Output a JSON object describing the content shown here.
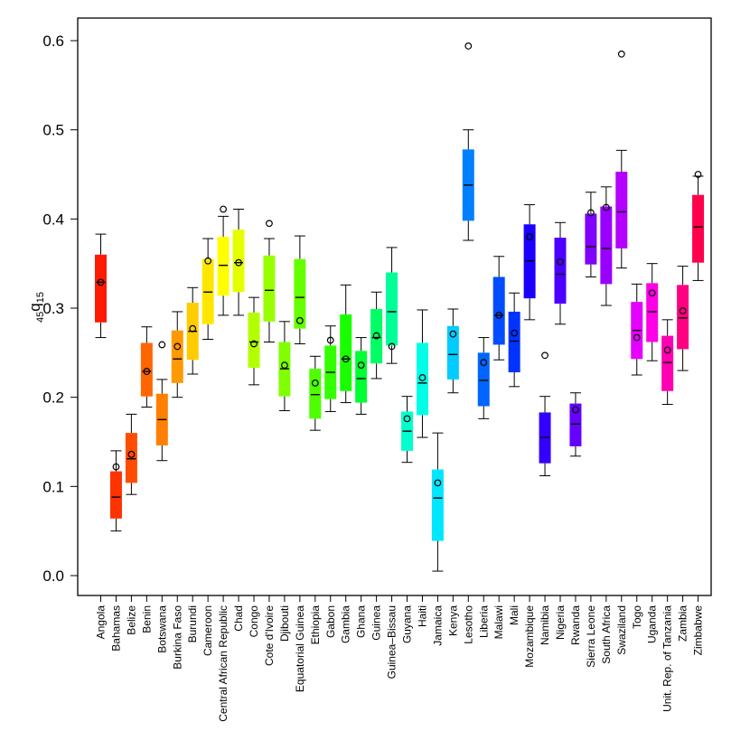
{
  "chart_data": {
    "type": "box",
    "title": "",
    "xlabel": "",
    "ylabel": {
      "pre_subscript": "45",
      "main": "q",
      "post_subscript": "15"
    },
    "ylim": [
      -0.02,
      0.62
    ],
    "yticks": [
      "0.0",
      "0.1",
      "0.2",
      "0.3",
      "0.4",
      "0.5",
      "0.6"
    ],
    "yticks_values": [
      0.0,
      0.1,
      0.2,
      0.3,
      0.4,
      0.5,
      0.6
    ],
    "grid": false,
    "categories": [
      "Angola",
      "Bahamas",
      "Belize",
      "Benin",
      "Botswana",
      "Burkina Faso",
      "Burundi",
      "Cameroon",
      "Central African Republic",
      "Chad",
      "Congo",
      "Cote d'Ivoire",
      "Djibouti",
      "Equatorial Guinea",
      "Ethiopia",
      "Gabon",
      "Gambia",
      "Ghana",
      "Guinea",
      "Guinea–Bissau",
      "Guyana",
      "Haiti",
      "Jamaica",
      "Kenya",
      "Lesotho",
      "Liberia",
      "Malawi",
      "Mali",
      "Mozambique",
      "Namibia",
      "Nigeria",
      "Rwanda",
      "Sierra Leone",
      "South Africa",
      "Swaziland",
      "Togo",
      "Uganda",
      "Unit. Rep. of Tanzania",
      "Zambia",
      "Zimbabwe"
    ],
    "colors": [
      "#ff1a00",
      "#ff3300",
      "#ff4d00",
      "#ff6600",
      "#ff8000",
      "#ff9900",
      "#ffcc00",
      "#ffe600",
      "#ffff00",
      "#e6ff00",
      "#b3ff00",
      "#99ff00",
      "#80ff00",
      "#66ff00",
      "#4dff00",
      "#33ff00",
      "#1aff00",
      "#00ff33",
      "#00ff66",
      "#00ff99",
      "#00ffcc",
      "#00ffe6",
      "#00e6ff",
      "#00ccff",
      "#0080ff",
      "#0066ff",
      "#004dff",
      "#0033ff",
      "#1a00ff",
      "#3300ff",
      "#4d00ff",
      "#6600ff",
      "#8000ff",
      "#9900ff",
      "#b300ff",
      "#e600ff",
      "#ff00e6",
      "#ff00b3",
      "#ff0080",
      "#ff004d"
    ],
    "boxes": [
      {
        "min": 0.267,
        "q1": 0.284,
        "median": 0.329,
        "q3": 0.36,
        "max": 0.383,
        "point": 0.329
      },
      {
        "min": 0.05,
        "q1": 0.064,
        "median": 0.088,
        "q3": 0.117,
        "max": 0.14,
        "point": 0.122
      },
      {
        "min": 0.091,
        "q1": 0.104,
        "median": 0.131,
        "q3": 0.16,
        "max": 0.181,
        "point": 0.136
      },
      {
        "min": 0.189,
        "q1": 0.201,
        "median": 0.229,
        "q3": 0.261,
        "max": 0.279,
        "point": 0.229
      },
      {
        "min": 0.129,
        "q1": 0.146,
        "median": 0.175,
        "q3": 0.204,
        "max": 0.22,
        "point": 0.259
      },
      {
        "min": 0.2,
        "q1": 0.216,
        "median": 0.243,
        "q3": 0.275,
        "max": 0.296,
        "point": 0.257
      },
      {
        "min": 0.226,
        "q1": 0.242,
        "median": 0.274,
        "q3": 0.306,
        "max": 0.323,
        "point": 0.277
      },
      {
        "min": 0.265,
        "q1": 0.282,
        "median": 0.318,
        "q3": 0.355,
        "max": 0.378,
        "point": 0.353
      },
      {
        "min": 0.292,
        "q1": 0.314,
        "median": 0.348,
        "q3": 0.38,
        "max": 0.403,
        "point": 0.411
      },
      {
        "min": 0.292,
        "q1": 0.318,
        "median": 0.351,
        "q3": 0.388,
        "max": 0.411,
        "point": 0.351
      },
      {
        "min": 0.214,
        "q1": 0.233,
        "median": 0.262,
        "q3": 0.295,
        "max": 0.312,
        "point": 0.26
      },
      {
        "min": 0.262,
        "q1": 0.285,
        "median": 0.32,
        "q3": 0.359,
        "max": 0.378,
        "point": 0.395
      },
      {
        "min": 0.185,
        "q1": 0.201,
        "median": 0.232,
        "q3": 0.262,
        "max": 0.285,
        "point": 0.236
      },
      {
        "min": 0.26,
        "q1": 0.277,
        "median": 0.312,
        "q3": 0.355,
        "max": 0.381,
        "point": 0.286
      },
      {
        "min": 0.163,
        "q1": 0.176,
        "median": 0.203,
        "q3": 0.232,
        "max": 0.246,
        "point": 0.216
      },
      {
        "min": 0.184,
        "q1": 0.198,
        "median": 0.228,
        "q3": 0.258,
        "max": 0.28,
        "point": 0.264
      },
      {
        "min": 0.194,
        "q1": 0.207,
        "median": 0.243,
        "q3": 0.293,
        "max": 0.326,
        "point": 0.243
      },
      {
        "min": 0.181,
        "q1": 0.194,
        "median": 0.221,
        "q3": 0.252,
        "max": 0.267,
        "point": 0.236
      },
      {
        "min": 0.221,
        "q1": 0.238,
        "median": 0.267,
        "q3": 0.299,
        "max": 0.318,
        "point": 0.269
      },
      {
        "min": 0.238,
        "q1": 0.258,
        "median": 0.296,
        "q3": 0.34,
        "max": 0.368,
        "point": 0.257
      },
      {
        "min": 0.127,
        "q1": 0.14,
        "median": 0.162,
        "q3": 0.184,
        "max": 0.201,
        "point": 0.176
      },
      {
        "min": 0.155,
        "q1": 0.18,
        "median": 0.216,
        "q3": 0.261,
        "max": 0.298,
        "point": 0.222
      },
      {
        "min": 0.005,
        "q1": 0.039,
        "median": 0.087,
        "q3": 0.119,
        "max": 0.16,
        "point": 0.104
      },
      {
        "min": 0.205,
        "q1": 0.22,
        "median": 0.248,
        "q3": 0.28,
        "max": 0.299,
        "point": 0.271
      },
      {
        "min": 0.376,
        "q1": 0.398,
        "median": 0.438,
        "q3": 0.478,
        "max": 0.5,
        "point": 0.594
      },
      {
        "min": 0.176,
        "q1": 0.19,
        "median": 0.219,
        "q3": 0.25,
        "max": 0.267,
        "point": 0.239
      },
      {
        "min": 0.242,
        "q1": 0.259,
        "median": 0.292,
        "q3": 0.335,
        "max": 0.358,
        "point": 0.292
      },
      {
        "min": 0.212,
        "q1": 0.228,
        "median": 0.263,
        "q3": 0.296,
        "max": 0.317,
        "point": 0.272
      },
      {
        "min": 0.287,
        "q1": 0.311,
        "median": 0.353,
        "q3": 0.394,
        "max": 0.416,
        "point": 0.38
      },
      {
        "min": 0.112,
        "q1": 0.126,
        "median": 0.155,
        "q3": 0.183,
        "max": 0.201,
        "point": 0.247
      },
      {
        "min": 0.282,
        "q1": 0.305,
        "median": 0.338,
        "q3": 0.379,
        "max": 0.396,
        "point": 0.352
      },
      {
        "min": 0.134,
        "q1": 0.145,
        "median": 0.17,
        "q3": 0.193,
        "max": 0.205,
        "point": 0.186
      },
      {
        "min": 0.335,
        "q1": 0.349,
        "median": 0.369,
        "q3": 0.406,
        "max": 0.43,
        "point": 0.407
      },
      {
        "min": 0.303,
        "q1": 0.327,
        "median": 0.367,
        "q3": 0.414,
        "max": 0.436,
        "point": 0.413
      },
      {
        "min": 0.345,
        "q1": 0.367,
        "median": 0.408,
        "q3": 0.453,
        "max": 0.477,
        "point": 0.585
      },
      {
        "min": 0.225,
        "q1": 0.243,
        "median": 0.275,
        "q3": 0.307,
        "max": 0.327,
        "point": 0.267
      },
      {
        "min": 0.241,
        "q1": 0.262,
        "median": 0.296,
        "q3": 0.328,
        "max": 0.35,
        "point": 0.317
      },
      {
        "min": 0.192,
        "q1": 0.207,
        "median": 0.239,
        "q3": 0.269,
        "max": 0.287,
        "point": 0.253
      },
      {
        "min": 0.23,
        "q1": 0.254,
        "median": 0.289,
        "q3": 0.326,
        "max": 0.347,
        "point": 0.297
      },
      {
        "min": 0.331,
        "q1": 0.351,
        "median": 0.391,
        "q3": 0.427,
        "max": 0.448,
        "point": 0.45
      }
    ]
  }
}
